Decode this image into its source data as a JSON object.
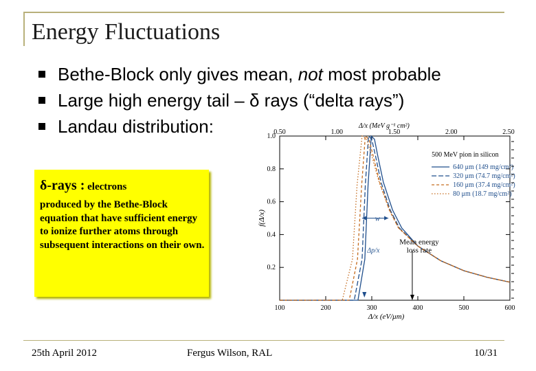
{
  "slide": {
    "title": "Energy Fluctuations",
    "bullets": [
      {
        "pre": "Bethe-Block only gives mean, ",
        "em": "not",
        "post": " most probable"
      },
      {
        "pre": "Large high energy tail – δ rays (“delta rays”)",
        "em": "",
        "post": ""
      },
      {
        "pre": "Landau distribution:",
        "em": "",
        "post": ""
      }
    ]
  },
  "note": {
    "heading": "δ-rays :",
    "heading_small": " electrons",
    "body": "produced by the Bethe-Block equation that have sufficient energy to ionize further atoms through subsequent interactions on their own."
  },
  "footer": {
    "date": "25th April 2012",
    "author": "Fergus Wilson, RAL",
    "page": "10/31"
  },
  "chart_data": {
    "type": "line",
    "title": "500 MeV pion in silicon",
    "xlabel": "Δ/x   (eV/μm)",
    "x2label": "Δ/x   (MeV g⁻¹ cm²)",
    "ylabel": "f(Δ/x)",
    "xlim": [
      100,
      600
    ],
    "ylim": [
      0,
      1.0
    ],
    "x_ticks": [
      "100",
      "200",
      "300",
      "400",
      "500",
      "600"
    ],
    "x2_ticks": [
      "0.50",
      "1.00",
      "1.50",
      "2.00",
      "2.50"
    ],
    "y_ticks": [
      "0.2",
      "0.4",
      "0.6",
      "0.8",
      "1.0"
    ],
    "legend_position": "top-right",
    "series": [
      {
        "name": "640 μm (149 mg/cm²)",
        "color": "#1f4e8c",
        "dash": "solid",
        "peak": 299,
        "w": 13,
        "x": [
          100,
          270,
          285,
          292,
          299,
          306,
          313,
          325,
          345,
          365,
          400,
          450,
          500,
          550,
          600
        ],
        "y": [
          0,
          0,
          0.25,
          0.7,
          1.0,
          0.98,
          0.88,
          0.72,
          0.55,
          0.44,
          0.33,
          0.24,
          0.18,
          0.14,
          0.11
        ]
      },
      {
        "name": "320 μm (74.7 mg/cm²)",
        "color": "#1f4e8c",
        "dash": "longdash",
        "peak": 293,
        "w": 15,
        "x": [
          100,
          262,
          279,
          286,
          293,
          300,
          308,
          320,
          340,
          360,
          400,
          450,
          500,
          550,
          600
        ],
        "y": [
          0,
          0,
          0.25,
          0.7,
          1.0,
          0.98,
          0.88,
          0.72,
          0.55,
          0.44,
          0.33,
          0.24,
          0.18,
          0.14,
          0.11
        ]
      },
      {
        "name": "160 μm (37.4 mg/cm²)",
        "color": "#c46a1c",
        "dash": "dash",
        "peak": 286,
        "w": 17,
        "x": [
          100,
          251,
          269,
          278,
          286,
          294,
          303,
          317,
          338,
          358,
          400,
          450,
          500,
          550,
          600
        ],
        "y": [
          0,
          0,
          0.25,
          0.7,
          1.0,
          0.98,
          0.88,
          0.72,
          0.55,
          0.44,
          0.33,
          0.24,
          0.18,
          0.14,
          0.11
        ]
      },
      {
        "name": "80 μm (18.7 mg/cm²)",
        "color": "#c46a1c",
        "dash": "dot",
        "peak": 279,
        "w": 20,
        "x": [
          100,
          236,
          258,
          268,
          279,
          289,
          300,
          316,
          338,
          358,
          400,
          450,
          500,
          550,
          600
        ],
        "y": [
          0,
          0,
          0.25,
          0.7,
          1.0,
          0.98,
          0.88,
          0.72,
          0.55,
          0.44,
          0.33,
          0.24,
          0.18,
          0.14,
          0.11
        ]
      }
    ],
    "annotations": [
      {
        "text": "w",
        "x": 307,
        "y": 0.5
      },
      {
        "text": "Δp/x",
        "x": 290,
        "y": 0.29
      },
      {
        "text": "Mean energy",
        "x": 388,
        "y": 0.34
      },
      {
        "text": "loss rate",
        "x": 388,
        "y": 0.29
      }
    ],
    "mean_energy_marker_x": 388,
    "most_probable_marker_x": 284
  }
}
